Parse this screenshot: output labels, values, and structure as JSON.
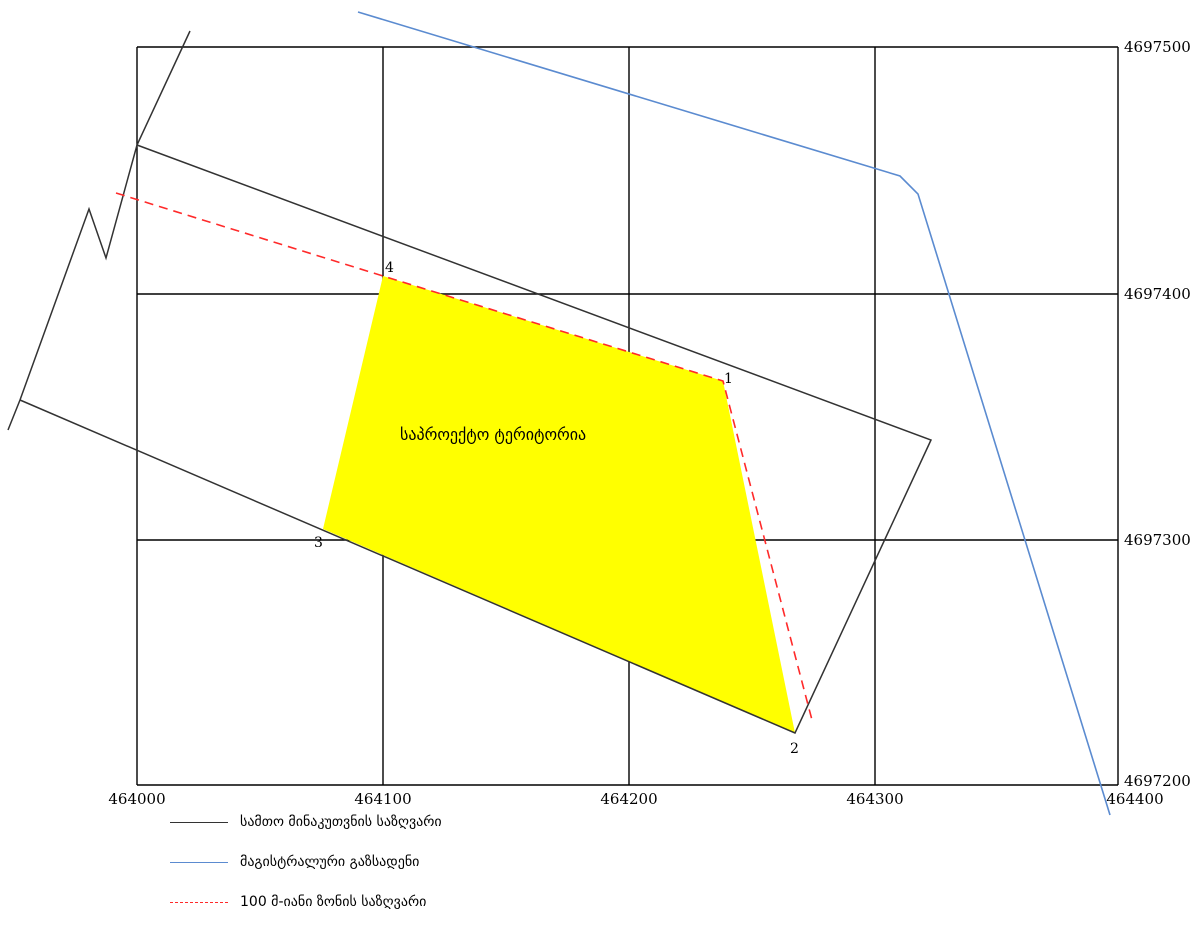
{
  "colors": {
    "grid": "#000000",
    "land_boundary": "#333333",
    "pipeline": "#5b8bd0",
    "zone_boundary": "#ff2a2a",
    "project_fill": "#ffff00"
  },
  "map": {
    "x_ticks": [
      "464000",
      "464100",
      "464200",
      "464300",
      "464400"
    ],
    "y_ticks": [
      "4697500",
      "4697400",
      "4697300",
      "4697200"
    ],
    "project_area_label": "საპროექტო ტერიტორია",
    "vertices": [
      "1",
      "2",
      "3",
      "4"
    ]
  },
  "legend": [
    {
      "label": "სამთო მინაკუთვნის საზღვარი",
      "style": "land_boundary"
    },
    {
      "label": "მაგისტრალური გაზსადენი",
      "style": "pipeline"
    },
    {
      "label": "100 მ-იანი ზონის საზღვარი",
      "style": "zone_boundary"
    }
  ]
}
